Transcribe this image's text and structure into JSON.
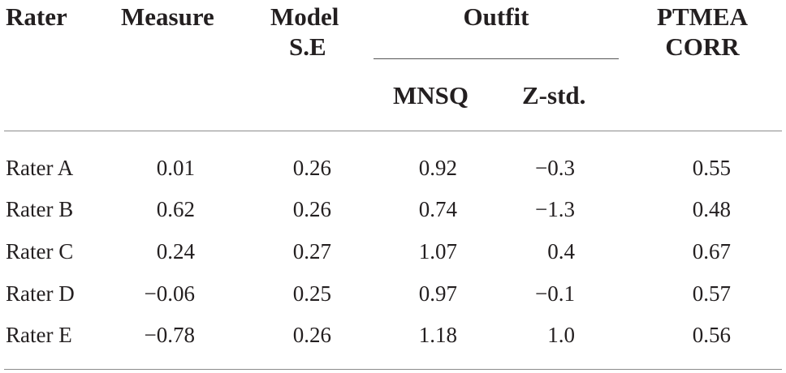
{
  "table": {
    "headers": {
      "rater": "Rater",
      "measure": "Measure",
      "model_se_line1": "Model",
      "model_se_line2": "S.E",
      "outfit": "Outfit",
      "mnsq": "MNSQ",
      "zstd": "Z-std.",
      "ptmea_line1": "PTMEA",
      "ptmea_line2": "CORR"
    },
    "rows": [
      {
        "rater": "Rater A",
        "measure": "0.01",
        "se": "0.26",
        "mnsq": "0.92",
        "zstd": "−0.3",
        "ptmea": "0.55"
      },
      {
        "rater": "Rater B",
        "measure": "0.62",
        "se": "0.26",
        "mnsq": "0.74",
        "zstd": "−1.3",
        "ptmea": "0.48"
      },
      {
        "rater": "Rater C",
        "measure": "0.24",
        "se": "0.27",
        "mnsq": "1.07",
        "zstd": "0.4",
        "ptmea": "0.67"
      },
      {
        "rater": "Rater D",
        "measure": "−0.06",
        "se": "0.25",
        "mnsq": "0.97",
        "zstd": "−0.1",
        "ptmea": "0.57"
      },
      {
        "rater": "Rater E",
        "measure": "−0.78",
        "se": "0.26",
        "mnsq": "1.18",
        "zstd": "1.0",
        "ptmea": "0.56"
      }
    ]
  }
}
